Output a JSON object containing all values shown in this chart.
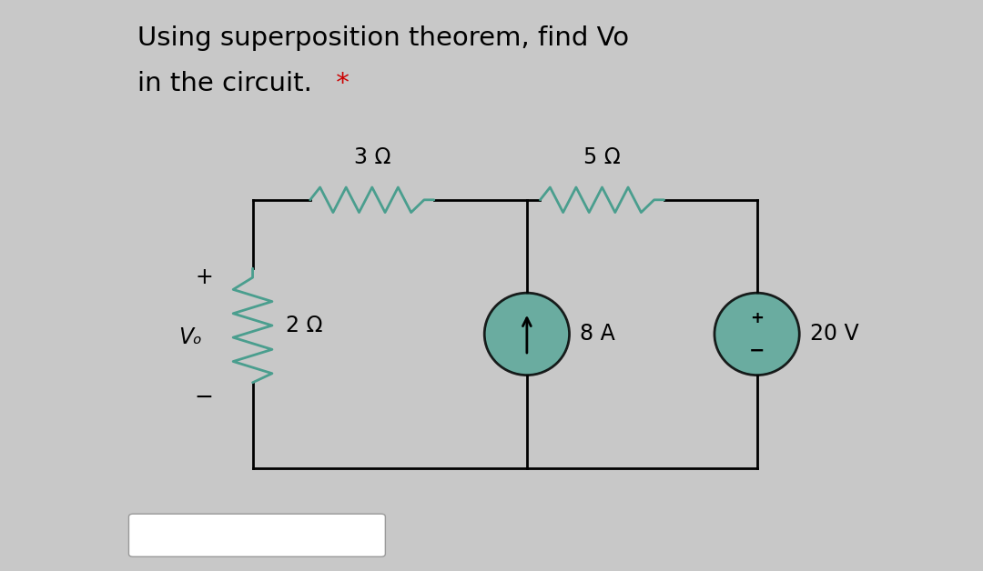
{
  "title_line1": "Using superposition theorem, find Vo",
  "title_line2": "in the circuit.",
  "title_star": " *",
  "bg_color": "#ffffff",
  "side_panel_color": "#c8c8c8",
  "wire_color": "#000000",
  "resistor_color": "#4a9e8e",
  "source_color": "#5aa89a",
  "text_color": "#000000",
  "star_color": "#cc0000",
  "title_fontsize": 21,
  "label_fontsize": 17,
  "resistor_label_3": "3 Ω",
  "resistor_label_5": "5 Ω",
  "resistor_label_2": "2 Ω",
  "current_label": "8 A",
  "voltage_label": "20 V",
  "vo_label": "Vₒ",
  "plus_label": "+",
  "minus_label": "−"
}
